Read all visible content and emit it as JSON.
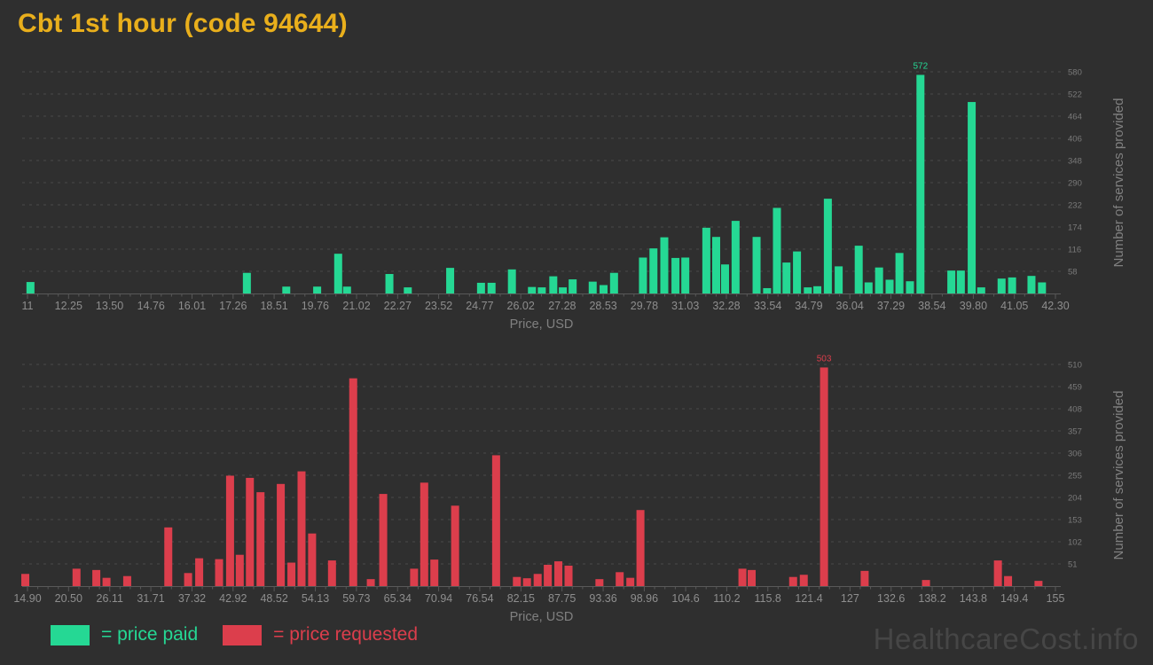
{
  "title": "Cbt 1st hour (code 94644)",
  "watermark": "HealthcareCost.info",
  "legend": {
    "paid": "= price paid",
    "requested": "= price requested"
  },
  "colors": {
    "background": "#2f2f2f",
    "paid": "#25d894",
    "requested": "#dc3e4c",
    "title": "#e9af1c",
    "x_tick_text": "#8e8e8e",
    "y_tick_text": "#7a7a7a",
    "axis_title_text": "#808080",
    "axis_line": "#585858",
    "grid": "#4a4a4a",
    "watermark": "#464646"
  },
  "chart_data": [
    {
      "type": "bar",
      "name": "price-paid-histogram",
      "series_name": "price paid",
      "color_key": "paid",
      "xlabel": "Price, USD",
      "ylabel": "Number of services provided",
      "legend_position": "bottom",
      "grid": true,
      "xlim": [
        11,
        42.3
      ],
      "ylim": [
        0,
        605
      ],
      "x_ticks": [
        "11",
        "12.25",
        "13.50",
        "14.76",
        "16.01",
        "17.26",
        "18.51",
        "19.76",
        "21.02",
        "22.27",
        "23.52",
        "24.77",
        "26.02",
        "27.28",
        "28.53",
        "29.78",
        "31.03",
        "32.28",
        "33.54",
        "34.79",
        "36.04",
        "37.29",
        "38.54",
        "39.80",
        "41.05",
        "42.30"
      ],
      "y_ticks": [
        58,
        116,
        174,
        232,
        290,
        348,
        406,
        464,
        522,
        580
      ],
      "annotated_max": "572",
      "points": [
        [
          11.09,
          30
        ],
        [
          17.68,
          54
        ],
        [
          18.88,
          18
        ],
        [
          19.82,
          18
        ],
        [
          20.46,
          104
        ],
        [
          20.73,
          18
        ],
        [
          22.02,
          51
        ],
        [
          22.58,
          16
        ],
        [
          23.87,
          67
        ],
        [
          24.81,
          28
        ],
        [
          25.13,
          28
        ],
        [
          25.75,
          63
        ],
        [
          26.36,
          17
        ],
        [
          26.66,
          16
        ],
        [
          27.01,
          45
        ],
        [
          27.3,
          16
        ],
        [
          27.6,
          37
        ],
        [
          28.21,
          31
        ],
        [
          28.54,
          22
        ],
        [
          28.86,
          54
        ],
        [
          29.74,
          94
        ],
        [
          30.06,
          118
        ],
        [
          30.39,
          147
        ],
        [
          30.73,
          93
        ],
        [
          31.03,
          94
        ],
        [
          31.67,
          172
        ],
        [
          31.97,
          148
        ],
        [
          32.24,
          76
        ],
        [
          32.56,
          190
        ],
        [
          33.2,
          148
        ],
        [
          33.52,
          14
        ],
        [
          33.82,
          224
        ],
        [
          34.11,
          81
        ],
        [
          34.43,
          110
        ],
        [
          34.76,
          16
        ],
        [
          35.05,
          19
        ],
        [
          35.37,
          248
        ],
        [
          35.7,
          71
        ],
        [
          36.31,
          125
        ],
        [
          36.61,
          29
        ],
        [
          36.93,
          68
        ],
        [
          37.25,
          36
        ],
        [
          37.55,
          106
        ],
        [
          37.87,
          32
        ],
        [
          38.19,
          572
        ],
        [
          39.13,
          60
        ],
        [
          39.42,
          60
        ],
        [
          39.75,
          501
        ],
        [
          40.04,
          16
        ],
        [
          40.66,
          39
        ],
        [
          40.98,
          42
        ],
        [
          41.57,
          46
        ],
        [
          41.89,
          29
        ]
      ]
    },
    {
      "type": "bar",
      "name": "price-requested-histogram",
      "series_name": "price requested",
      "color_key": "requested",
      "xlabel": "Price, USD",
      "ylabel": "Number of services provided",
      "legend_position": "bottom",
      "grid": true,
      "xlim": [
        14.9,
        155
      ],
      "ylim": [
        0,
        530
      ],
      "x_ticks": [
        "14.90",
        "20.50",
        "26.11",
        "31.71",
        "37.32",
        "42.92",
        "48.52",
        "54.13",
        "59.73",
        "65.34",
        "70.94",
        "76.54",
        "82.15",
        "87.75",
        "93.36",
        "98.96",
        "104.6",
        "110.2",
        "115.8",
        "121.4",
        "127",
        "132.6",
        "138.2",
        "143.8",
        "149.4",
        "155"
      ],
      "y_ticks": [
        51,
        102,
        153,
        204,
        255,
        306,
        357,
        408,
        459,
        510
      ],
      "annotated_max": "503",
      "points": [
        [
          14.6,
          28
        ],
        [
          21.58,
          40
        ],
        [
          24.28,
          37
        ],
        [
          25.67,
          19
        ],
        [
          28.49,
          23
        ],
        [
          34.09,
          135
        ],
        [
          36.79,
          30
        ],
        [
          38.3,
          64
        ],
        [
          41.01,
          62
        ],
        [
          42.51,
          254
        ],
        [
          43.83,
          72
        ],
        [
          45.21,
          249
        ],
        [
          46.66,
          216
        ],
        [
          49.42,
          235
        ],
        [
          50.87,
          54
        ],
        [
          52.25,
          264
        ],
        [
          53.69,
          121
        ],
        [
          56.4,
          59
        ],
        [
          59.29,
          478
        ],
        [
          61.69,
          16
        ],
        [
          63.38,
          212
        ],
        [
          67.59,
          40
        ],
        [
          68.97,
          238
        ],
        [
          70.35,
          61
        ],
        [
          73.18,
          185
        ],
        [
          78.77,
          301
        ],
        [
          81.6,
          21
        ],
        [
          82.98,
          18
        ],
        [
          84.43,
          28
        ],
        [
          85.81,
          49
        ],
        [
          87.25,
          57
        ],
        [
          88.64,
          47
        ],
        [
          92.85,
          16
        ],
        [
          95.61,
          32
        ],
        [
          97.06,
          19
        ],
        [
          98.44,
          175
        ],
        [
          112.34,
          40
        ],
        [
          113.6,
          37
        ],
        [
          119.25,
          21
        ],
        [
          120.7,
          26
        ],
        [
          123.46,
          503
        ],
        [
          129.0,
          35
        ],
        [
          137.36,
          14
        ],
        [
          147.16,
          59
        ],
        [
          148.54,
          23
        ],
        [
          152.69,
          12
        ]
      ]
    }
  ]
}
